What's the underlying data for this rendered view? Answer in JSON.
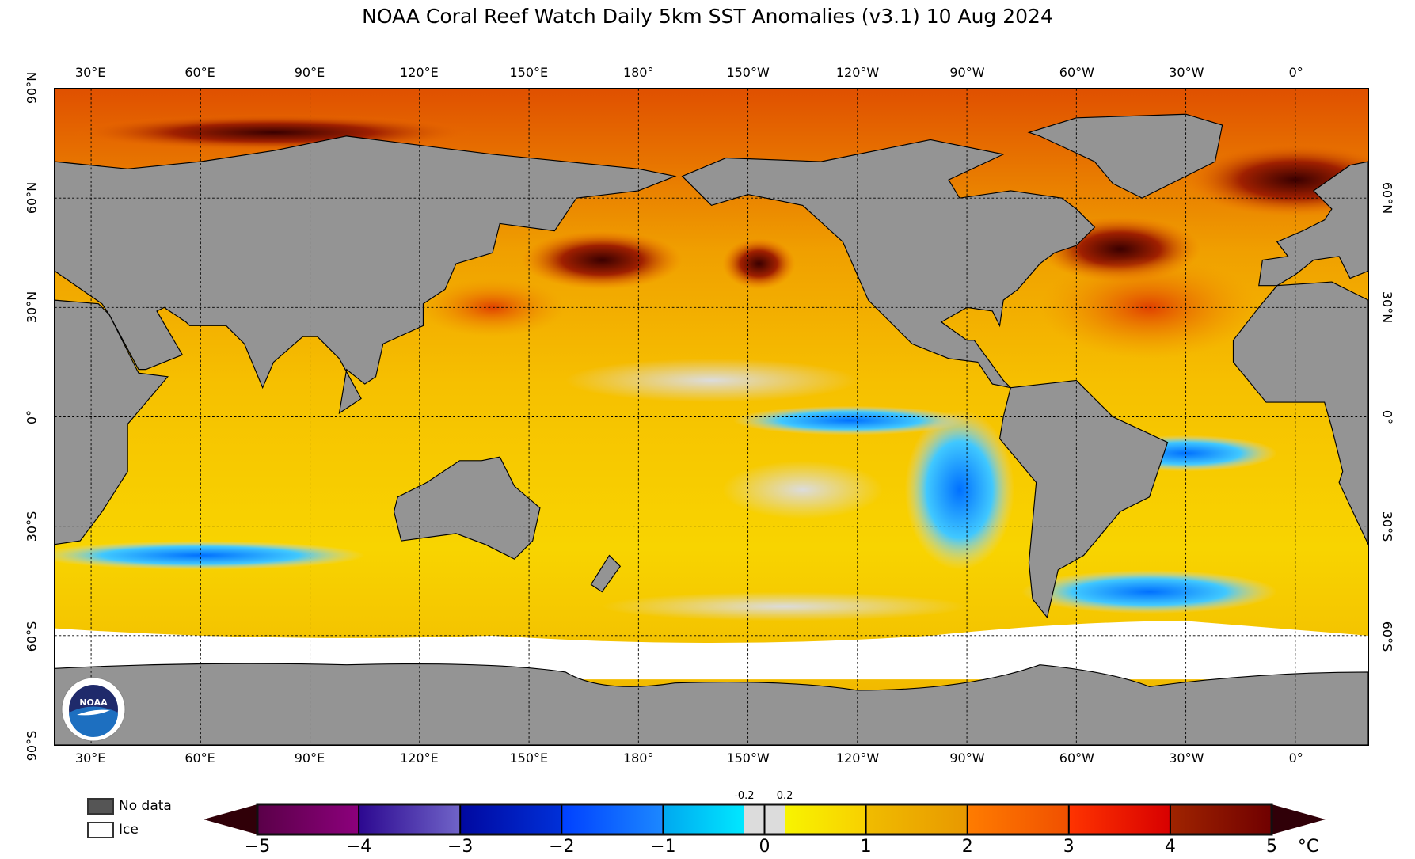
{
  "title": "NOAA Coral Reef Watch Daily 5km SST Anomalies  (v3.1)   10 Aug 2024",
  "map": {
    "projection": "equirectangular",
    "lon_range": [
      20,
      380
    ],
    "lat_range": [
      -90,
      90
    ],
    "lon_ticks": [
      {
        "lon": 30,
        "label": "30°E"
      },
      {
        "lon": 60,
        "label": "60°E"
      },
      {
        "lon": 90,
        "label": "90°E"
      },
      {
        "lon": 120,
        "label": "120°E"
      },
      {
        "lon": 150,
        "label": "150°E"
      },
      {
        "lon": 180,
        "label": "180°"
      },
      {
        "lon": 210,
        "label": "150°W"
      },
      {
        "lon": 240,
        "label": "120°W"
      },
      {
        "lon": 270,
        "label": "90°W"
      },
      {
        "lon": 300,
        "label": "60°W"
      },
      {
        "lon": 330,
        "label": "30°W"
      },
      {
        "lon": 360,
        "label": "0°"
      }
    ],
    "lat_ticks_left": [
      {
        "lat": 90,
        "label": "90°N"
      },
      {
        "lat": 60,
        "label": "60°N"
      },
      {
        "lat": 30,
        "label": "30°N"
      },
      {
        "lat": 0,
        "label": "0°"
      },
      {
        "lat": -30,
        "label": "30°S"
      },
      {
        "lat": -60,
        "label": "60°S"
      },
      {
        "lat": -90,
        "label": "90°S"
      }
    ],
    "lat_ticks_right": [
      {
        "lat": 60,
        "label": "60°N"
      },
      {
        "lat": 30,
        "label": "30°N"
      },
      {
        "lat": 0,
        "label": "0°"
      },
      {
        "lat": -30,
        "label": "30°S"
      },
      {
        "lat": -60,
        "label": "60°S"
      }
    ],
    "colors": {
      "land": "#949494",
      "no_data": "#555555",
      "ice": "#ffffff",
      "ocean_base": "#f6c400"
    }
  },
  "legend": {
    "no_data_label": "No data",
    "ice_label": "Ice",
    "no_data_color": "#555555",
    "ice_color": "#ffffff"
  },
  "colorbar": {
    "min": -5,
    "max": 5,
    "unit": "°C",
    "ticks": [
      "-5",
      "-4",
      "-3",
      "-2",
      "-1",
      "0",
      "1",
      "2",
      "3",
      "4",
      "5"
    ],
    "small_ticks": [
      "-0.2",
      "0.2"
    ],
    "segments": [
      {
        "from": -5,
        "to": -4,
        "colors": [
          "#5a0048",
          "#8c007c"
        ]
      },
      {
        "from": -4,
        "to": -3,
        "colors": [
          "#2c0890",
          "#7064c8"
        ]
      },
      {
        "from": -3,
        "to": -2,
        "colors": [
          "#0008a0",
          "#0030d8"
        ]
      },
      {
        "from": -2,
        "to": -1,
        "colors": [
          "#0040ff",
          "#1c88ff"
        ]
      },
      {
        "from": -1,
        "to": -0.2,
        "colors": [
          "#00a8f0",
          "#00e8ff"
        ]
      },
      {
        "from": -0.2,
        "to": 0.2,
        "colors": [
          "#dcdcdc",
          "#dcdcdc"
        ]
      },
      {
        "from": 0.2,
        "to": 1,
        "colors": [
          "#f8f400",
          "#f8d000"
        ]
      },
      {
        "from": 1,
        "to": 2,
        "colors": [
          "#f0bc00",
          "#e89800"
        ]
      },
      {
        "from": 2,
        "to": 3,
        "colors": [
          "#ff7c00",
          "#f05000"
        ]
      },
      {
        "from": 3,
        "to": 4,
        "colors": [
          "#ff3400",
          "#d80000"
        ]
      },
      {
        "from": 4,
        "to": 5,
        "colors": [
          "#a02400",
          "#700000"
        ]
      }
    ],
    "extend_color": "#300008"
  },
  "logo": {
    "text": "NOAA"
  }
}
